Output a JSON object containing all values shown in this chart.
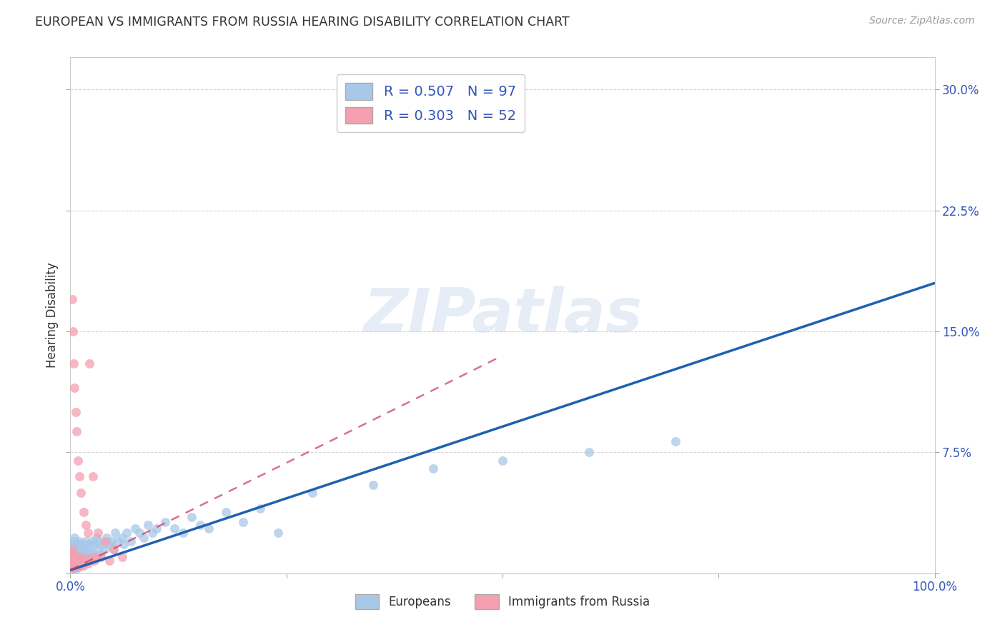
{
  "title": "EUROPEAN VS IMMIGRANTS FROM RUSSIA HEARING DISABILITY CORRELATION CHART",
  "source": "Source: ZipAtlas.com",
  "ylabel": "Hearing Disability",
  "watermark": "ZIPatlas",
  "xlim": [
    0.0,
    1.0
  ],
  "ylim": [
    0.0,
    0.32
  ],
  "yticks": [
    0.0,
    0.075,
    0.15,
    0.225,
    0.3
  ],
  "ytick_labels": [
    "",
    "7.5%",
    "15.0%",
    "22.5%",
    "30.0%"
  ],
  "blue_color": "#a8c8e8",
  "pink_color": "#f4a0b0",
  "blue_line_color": "#2060b0",
  "pink_line_color": "#d04060",
  "legend_label1": "Europeans",
  "legend_label2": "Immigrants from Russia",
  "title_color": "#333333",
  "axis_label_color": "#3355bb",
  "tick_color": "#3355bb",
  "grid_color": "#cccccc",
  "background_color": "#ffffff",
  "blue_line_x0": 0.0,
  "blue_line_y0": 0.002,
  "blue_line_x1": 1.0,
  "blue_line_y1": 0.18,
  "pink_line_x0": 0.0,
  "pink_line_y0": 0.002,
  "pink_line_x1": 0.5,
  "pink_line_y1": 0.135,
  "blue_scatter": [
    [
      0.001,
      0.005
    ],
    [
      0.001,
      0.008
    ],
    [
      0.002,
      0.003
    ],
    [
      0.002,
      0.006
    ],
    [
      0.002,
      0.01
    ],
    [
      0.002,
      0.015
    ],
    [
      0.003,
      0.004
    ],
    [
      0.003,
      0.008
    ],
    [
      0.003,
      0.012
    ],
    [
      0.003,
      0.018
    ],
    [
      0.004,
      0.003
    ],
    [
      0.004,
      0.007
    ],
    [
      0.004,
      0.012
    ],
    [
      0.004,
      0.02
    ],
    [
      0.005,
      0.004
    ],
    [
      0.005,
      0.009
    ],
    [
      0.005,
      0.015
    ],
    [
      0.005,
      0.022
    ],
    [
      0.006,
      0.005
    ],
    [
      0.006,
      0.01
    ],
    [
      0.006,
      0.016
    ],
    [
      0.007,
      0.003
    ],
    [
      0.007,
      0.007
    ],
    [
      0.007,
      0.013
    ],
    [
      0.008,
      0.005
    ],
    [
      0.008,
      0.01
    ],
    [
      0.008,
      0.018
    ],
    [
      0.009,
      0.004
    ],
    [
      0.009,
      0.008
    ],
    [
      0.009,
      0.015
    ],
    [
      0.01,
      0.005
    ],
    [
      0.01,
      0.01
    ],
    [
      0.01,
      0.02
    ],
    [
      0.011,
      0.006
    ],
    [
      0.011,
      0.012
    ],
    [
      0.012,
      0.005
    ],
    [
      0.012,
      0.01
    ],
    [
      0.012,
      0.018
    ],
    [
      0.013,
      0.007
    ],
    [
      0.013,
      0.014
    ],
    [
      0.014,
      0.006
    ],
    [
      0.015,
      0.008
    ],
    [
      0.015,
      0.015
    ],
    [
      0.016,
      0.01
    ],
    [
      0.016,
      0.018
    ],
    [
      0.017,
      0.007
    ],
    [
      0.018,
      0.012
    ],
    [
      0.018,
      0.02
    ],
    [
      0.02,
      0.008
    ],
    [
      0.02,
      0.015
    ],
    [
      0.021,
      0.01
    ],
    [
      0.022,
      0.018
    ],
    [
      0.023,
      0.008
    ],
    [
      0.024,
      0.013
    ],
    [
      0.025,
      0.01
    ],
    [
      0.025,
      0.02
    ],
    [
      0.027,
      0.012
    ],
    [
      0.028,
      0.018
    ],
    [
      0.03,
      0.01
    ],
    [
      0.03,
      0.022
    ],
    [
      0.032,
      0.015
    ],
    [
      0.033,
      0.02
    ],
    [
      0.035,
      0.012
    ],
    [
      0.038,
      0.018
    ],
    [
      0.04,
      0.015
    ],
    [
      0.042,
      0.022
    ],
    [
      0.045,
      0.018
    ],
    [
      0.048,
      0.02
    ],
    [
      0.05,
      0.015
    ],
    [
      0.052,
      0.025
    ],
    [
      0.055,
      0.02
    ],
    [
      0.06,
      0.022
    ],
    [
      0.062,
      0.018
    ],
    [
      0.065,
      0.025
    ],
    [
      0.07,
      0.02
    ],
    [
      0.075,
      0.028
    ],
    [
      0.08,
      0.025
    ],
    [
      0.085,
      0.022
    ],
    [
      0.09,
      0.03
    ],
    [
      0.095,
      0.025
    ],
    [
      0.1,
      0.028
    ],
    [
      0.11,
      0.032
    ],
    [
      0.12,
      0.028
    ],
    [
      0.13,
      0.025
    ],
    [
      0.14,
      0.035
    ],
    [
      0.15,
      0.03
    ],
    [
      0.16,
      0.028
    ],
    [
      0.18,
      0.038
    ],
    [
      0.2,
      0.032
    ],
    [
      0.22,
      0.04
    ],
    [
      0.24,
      0.025
    ],
    [
      0.28,
      0.05
    ],
    [
      0.35,
      0.055
    ],
    [
      0.42,
      0.065
    ],
    [
      0.5,
      0.07
    ],
    [
      0.6,
      0.075
    ],
    [
      0.7,
      0.082
    ]
  ],
  "pink_scatter": [
    [
      0.001,
      0.003
    ],
    [
      0.001,
      0.006
    ],
    [
      0.001,
      0.01
    ],
    [
      0.002,
      0.005
    ],
    [
      0.002,
      0.008
    ],
    [
      0.002,
      0.015
    ],
    [
      0.002,
      0.17
    ],
    [
      0.003,
      0.004
    ],
    [
      0.003,
      0.007
    ],
    [
      0.003,
      0.012
    ],
    [
      0.003,
      0.15
    ],
    [
      0.004,
      0.005
    ],
    [
      0.004,
      0.01
    ],
    [
      0.004,
      0.13
    ],
    [
      0.005,
      0.004
    ],
    [
      0.005,
      0.008
    ],
    [
      0.005,
      0.115
    ],
    [
      0.006,
      0.005
    ],
    [
      0.006,
      0.1
    ],
    [
      0.007,
      0.006
    ],
    [
      0.007,
      0.088
    ],
    [
      0.008,
      0.005
    ],
    [
      0.008,
      0.01
    ],
    [
      0.009,
      0.004
    ],
    [
      0.009,
      0.07
    ],
    [
      0.01,
      0.006
    ],
    [
      0.01,
      0.06
    ],
    [
      0.011,
      0.005
    ],
    [
      0.012,
      0.008
    ],
    [
      0.012,
      0.05
    ],
    [
      0.013,
      0.006
    ],
    [
      0.014,
      0.01
    ],
    [
      0.015,
      0.005
    ],
    [
      0.015,
      0.038
    ],
    [
      0.016,
      0.007
    ],
    [
      0.018,
      0.008
    ],
    [
      0.018,
      0.03
    ],
    [
      0.02,
      0.006
    ],
    [
      0.02,
      0.025
    ],
    [
      0.022,
      0.008
    ],
    [
      0.022,
      0.13
    ],
    [
      0.024,
      0.008
    ],
    [
      0.025,
      0.01
    ],
    [
      0.026,
      0.06
    ],
    [
      0.028,
      0.008
    ],
    [
      0.03,
      0.01
    ],
    [
      0.032,
      0.025
    ],
    [
      0.035,
      0.01
    ],
    [
      0.04,
      0.02
    ],
    [
      0.045,
      0.008
    ],
    [
      0.05,
      0.015
    ],
    [
      0.06,
      0.01
    ]
  ]
}
